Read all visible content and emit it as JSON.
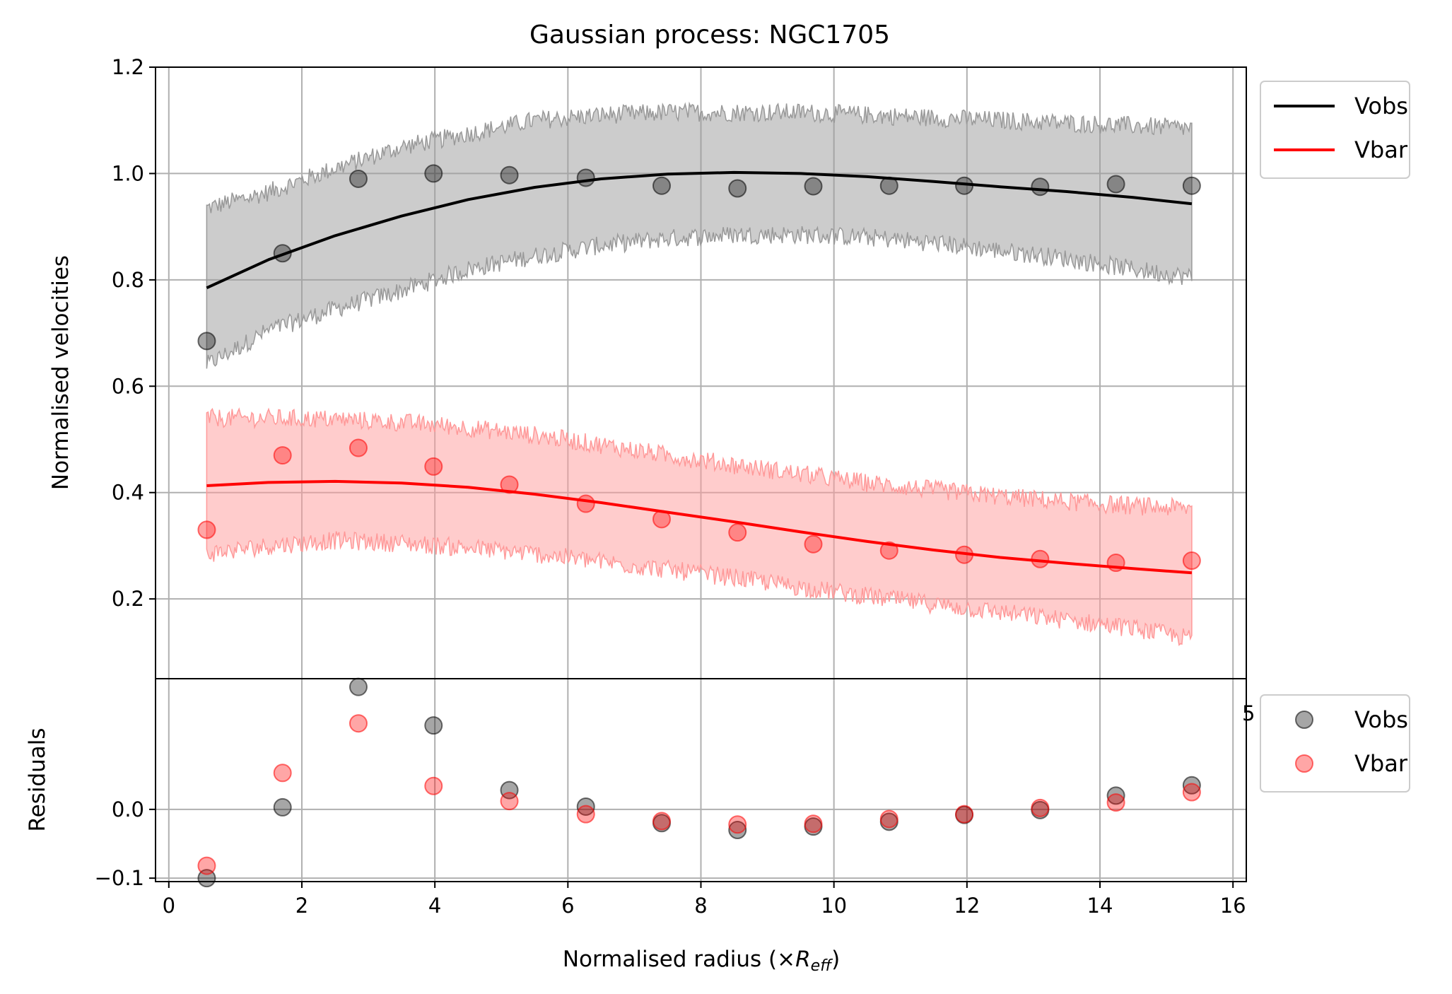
{
  "chart_data": [
    {
      "type": "line",
      "title": "Gaussian process: NGC1705",
      "ylabel": "Normalised velocities",
      "xlim": [
        -0.2,
        16.2
      ],
      "ylim": [
        0.05,
        1.2
      ],
      "x_ticks": [
        "0",
        "2",
        "4",
        "6",
        "8",
        "10",
        "12",
        "14",
        "16"
      ],
      "y_ticks": [
        {
          "v": 0.2,
          "label": "0.2"
        },
        {
          "v": 0.4,
          "label": "0.4"
        },
        {
          "v": 0.6,
          "label": "0.6"
        },
        {
          "v": 0.8,
          "label": "0.8"
        },
        {
          "v": 1.0,
          "label": "1.0"
        },
        {
          "v": 1.2,
          "label": "1.2"
        }
      ],
      "grid": true,
      "legend_position": "outside-top-right",
      "x_data": [
        0.57,
        1.71,
        2.85,
        3.98,
        5.12,
        6.27,
        7.41,
        8.55,
        9.69,
        10.83,
        11.96,
        13.1,
        14.24,
        15.38
      ],
      "series": [
        {
          "name": "Vobs",
          "color": "#000000",
          "band_color": "#999999",
          "points": [
            0.685,
            0.85,
            0.99,
            1.0,
            0.997,
            0.992,
            0.977,
            0.972,
            0.976,
            0.977,
            0.977,
            0.975,
            0.98,
            0.977
          ],
          "fit_x": [
            0.57,
            1.5,
            2.5,
            3.5,
            4.5,
            5.5,
            6.5,
            7.5,
            8.5,
            9.5,
            10.5,
            11.5,
            12.5,
            13.5,
            14.5,
            15.38
          ],
          "fit_y": [
            0.785,
            0.838,
            0.883,
            0.92,
            0.951,
            0.974,
            0.99,
            0.999,
            1.002,
            1.0,
            0.994,
            0.985,
            0.975,
            0.966,
            0.955,
            0.943
          ],
          "band_upper": [
            0.935,
            0.965,
            1.01,
            1.05,
            1.075,
            1.1,
            1.11,
            1.115,
            1.115,
            1.115,
            1.11,
            1.105,
            1.1,
            1.095,
            1.09,
            1.085
          ],
          "band_lower": [
            0.64,
            0.705,
            0.745,
            0.78,
            0.82,
            0.845,
            0.865,
            0.878,
            0.885,
            0.885,
            0.88,
            0.87,
            0.855,
            0.84,
            0.82,
            0.805
          ]
        },
        {
          "name": "Vbar",
          "color": "#ff0000",
          "band_color": "#ff9999",
          "points": [
            0.33,
            0.47,
            0.484,
            0.449,
            0.415,
            0.379,
            0.35,
            0.325,
            0.303,
            0.291,
            0.283,
            0.275,
            0.268,
            0.272
          ],
          "fit_x": [
            0.57,
            1.5,
            2.5,
            3.5,
            4.5,
            5.5,
            6.5,
            7.5,
            8.5,
            9.5,
            10.5,
            11.5,
            12.5,
            13.5,
            14.5,
            15.38
          ],
          "fit_y": [
            0.413,
            0.419,
            0.421,
            0.418,
            0.41,
            0.397,
            0.381,
            0.363,
            0.345,
            0.326,
            0.308,
            0.292,
            0.278,
            0.267,
            0.257,
            0.249
          ],
          "band_upper": [
            0.54,
            0.54,
            0.538,
            0.532,
            0.522,
            0.508,
            0.49,
            0.47,
            0.452,
            0.435,
            0.418,
            0.405,
            0.393,
            0.383,
            0.375,
            0.37
          ],
          "band_lower": [
            0.285,
            0.3,
            0.31,
            0.305,
            0.296,
            0.285,
            0.27,
            0.255,
            0.24,
            0.222,
            0.205,
            0.19,
            0.175,
            0.16,
            0.145,
            0.125
          ]
        }
      ]
    },
    {
      "type": "scatter",
      "ylabel": "Residuals",
      "xlabel": "Normalised radius (×R",
      "xlabel_sub": "eff",
      "xlabel_end": ")",
      "xlim": [
        -0.2,
        16.2
      ],
      "ylim": [
        -0.105,
        0.19
      ],
      "y_ticks": [
        {
          "v": 0.0,
          "label": "0.0"
        },
        {
          "v": -0.1,
          "label": "−0.1"
        }
      ],
      "x_ticks": [
        "0",
        "2",
        "4",
        "6",
        "8",
        "10",
        "12",
        "14",
        "16"
      ],
      "grid": true,
      "legend_position": "outside-top-right",
      "x_data": [
        0.57,
        1.71,
        2.85,
        3.98,
        5.12,
        6.27,
        7.41,
        8.55,
        9.69,
        10.83,
        11.96,
        13.1,
        14.24,
        15.38
      ],
      "series": [
        {
          "name": "Vobs",
          "color": "#000000",
          "values": [
            -0.1,
            0.003,
            0.178,
            0.122,
            0.028,
            0.004,
            -0.02,
            -0.03,
            -0.025,
            -0.018,
            -0.008,
            -0.001,
            0.02,
            0.035
          ]
        },
        {
          "name": "Vbar",
          "color": "#ff0000",
          "values": [
            -0.082,
            0.053,
            0.125,
            0.034,
            0.012,
            -0.007,
            -0.017,
            -0.022,
            -0.021,
            -0.014,
            -0.007,
            0.002,
            0.01,
            0.025
          ]
        }
      ],
      "stray_label": "5"
    }
  ]
}
